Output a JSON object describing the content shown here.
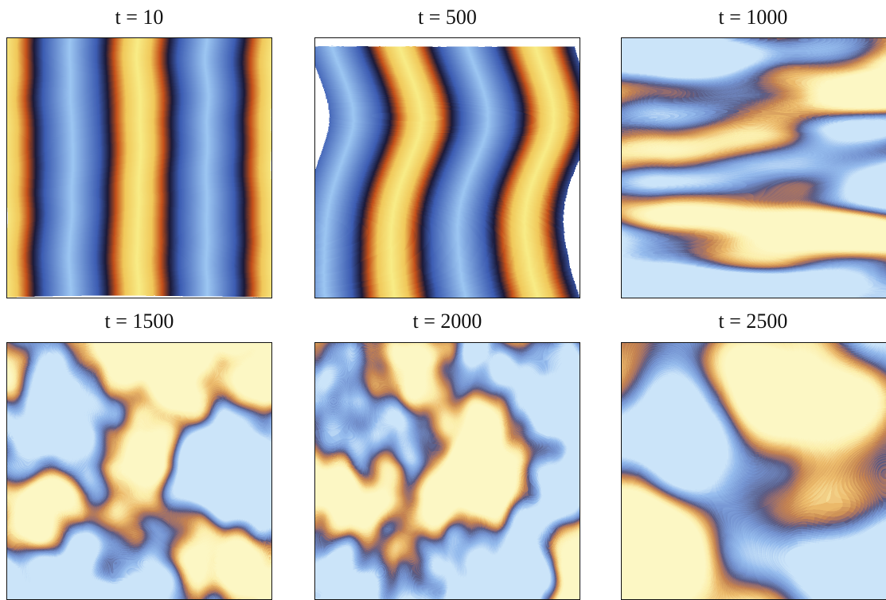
{
  "panels": [
    {
      "title": "t = 10"
    },
    {
      "title": "t = 500"
    },
    {
      "title": "t = 1000"
    },
    {
      "title": "t = 1500"
    },
    {
      "title": "t = 2000"
    },
    {
      "title": "t = 2500"
    }
  ]
}
